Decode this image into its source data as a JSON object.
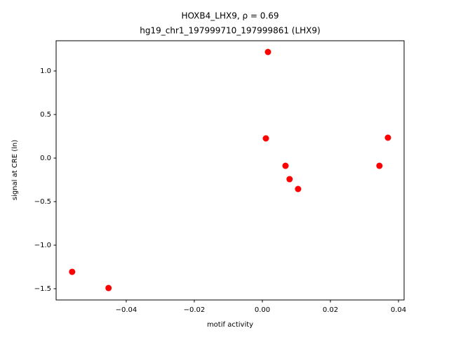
{
  "chart_data": {
    "type": "scatter",
    "title": "HOXB4_LHX9, ρ = 0.69",
    "subtitle": "hg19_chr1_197999710_197999861 (LHX9)",
    "x_label": "motif activity",
    "y_label": "signal at CRE (ln)",
    "color": "#ff0000",
    "x": [
      -0.0559,
      -0.0452,
      0.00103,
      0.00165,
      0.0068,
      0.008,
      0.0105,
      0.0344,
      0.0369
    ],
    "y": [
      -1.306,
      -1.492,
      0.226,
      1.218,
      -0.089,
      -0.242,
      -0.355,
      -0.089,
      0.234
    ],
    "xlim": [
      -0.0606,
      0.04165
    ],
    "ylim": [
      -1.629,
      1.347
    ],
    "xticks": [
      {
        "value": -0.04,
        "label": "−0.04"
      },
      {
        "value": -0.02,
        "label": "−0.02"
      },
      {
        "value": 0,
        "label": "0.00"
      },
      0.02,
      0.04
    ],
    "yticks": [
      {
        "value": -1.5,
        "label": "−1.5"
      },
      {
        "value": -1,
        "label": "−1.0"
      },
      {
        "value": -0.5,
        "label": "−0.5"
      },
      {
        "value": 0,
        "label": "0.0"
      },
      0.5,
      {
        "value": 1,
        "label": "1.0"
      }
    ],
    "grid": false
  }
}
